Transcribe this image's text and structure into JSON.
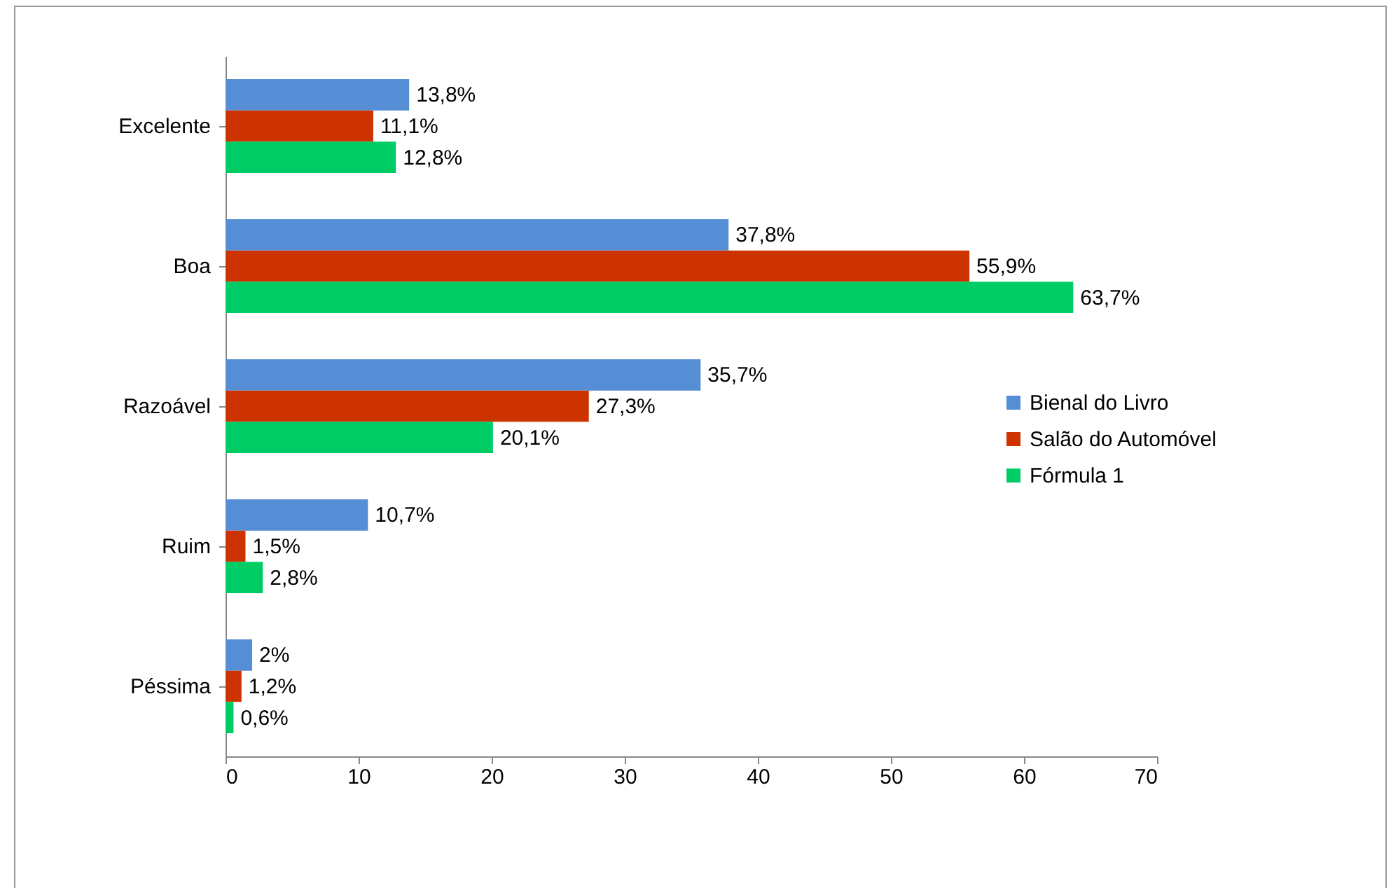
{
  "chart_data": {
    "type": "bar",
    "orientation": "horizontal",
    "categories": [
      "Excelente",
      "Boa",
      "Razoável",
      "Ruim",
      "Péssima"
    ],
    "series": [
      {
        "name": "Bienal do Livro",
        "color": "#558ed5",
        "values": [
          13.8,
          37.8,
          35.7,
          10.7,
          2
        ],
        "value_labels": [
          "13,8%",
          "37,8%",
          "35,7%",
          "10,7%",
          "2%"
        ]
      },
      {
        "name": "Salão do Automóvel",
        "color": "#cc3300",
        "values": [
          11.1,
          55.9,
          27.3,
          1.5,
          1.2
        ],
        "value_labels": [
          "11,1%",
          "55,9%",
          "27,3%",
          "1,5%",
          "1,2%"
        ]
      },
      {
        "name": "Fórmula 1",
        "color": "#00cc66",
        "values": [
          12.8,
          63.7,
          20.1,
          2.8,
          0.6
        ],
        "value_labels": [
          "12,8%",
          "63,7%",
          "20,1%",
          "2,8%",
          "0,6%"
        ]
      }
    ],
    "xlim": [
      0,
      70
    ],
    "xticks": [
      0,
      10,
      20,
      30,
      40,
      50,
      60,
      70
    ],
    "grid": false,
    "legend": "right"
  }
}
